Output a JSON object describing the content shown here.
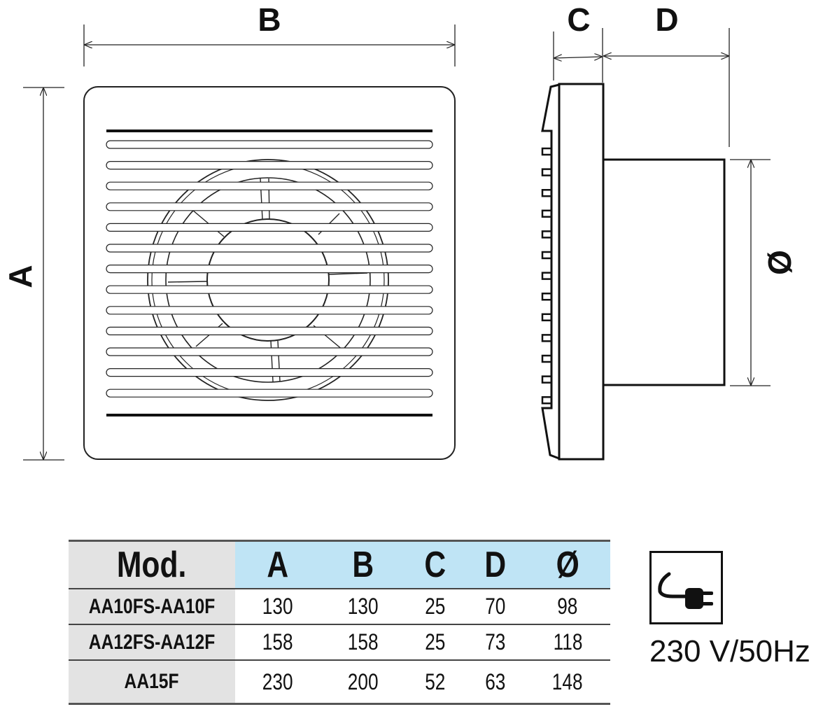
{
  "dimensions": {
    "a": "A",
    "b": "B",
    "c": "C",
    "d": "D",
    "diameter": "Ø"
  },
  "table": {
    "headers": [
      "Mod.",
      "A",
      "B",
      "C",
      "D",
      "Ø"
    ],
    "rows": [
      [
        "AA10FS-AA10F",
        "130",
        "130",
        "25",
        "70",
        "98"
      ],
      [
        "AA12FS-AA12F",
        "158",
        "158",
        "25",
        "73",
        "118"
      ],
      [
        "AA15F",
        "230",
        "200",
        "52",
        "63",
        "148"
      ]
    ],
    "colors": {
      "header_bg": "#bfe4f5",
      "model_bg": "#e3e3e3"
    }
  },
  "power": {
    "icon": "plug-icon",
    "label": "230 V/50Hz"
  }
}
